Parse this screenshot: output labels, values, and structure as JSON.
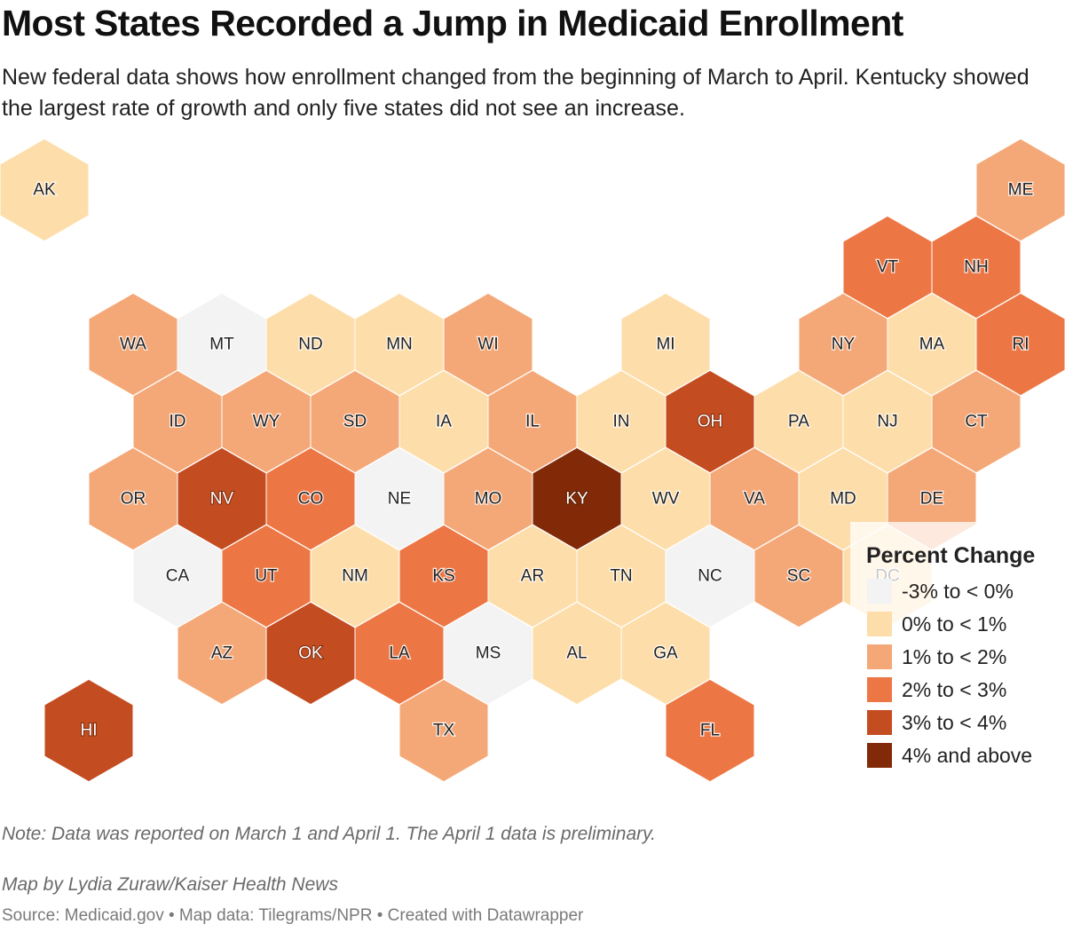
{
  "title": "Most States Recorded a Jump in Medicaid Enrollment",
  "subtitle": "New federal data shows how enrollment changed from the beginning of March to April. Kentucky showed the largest rate of growth and only five states did not see an increase.",
  "legend": {
    "title": "Percent Change",
    "bins": [
      {
        "label": "-3% to < 0%",
        "color": "#f3f3f3"
      },
      {
        "label": "0% to < 1%",
        "color": "#fddeaa"
      },
      {
        "label": "1% to < 2%",
        "color": "#f5a877"
      },
      {
        "label": "2% to < 3%",
        "color": "#ed7744"
      },
      {
        "label": "3% to < 4%",
        "color": "#c44c21"
      },
      {
        "label": "4% and above",
        "color": "#822a08"
      }
    ]
  },
  "states": [
    {
      "code": "AK",
      "bin": 1
    },
    {
      "code": "ME",
      "bin": 2
    },
    {
      "code": "VT",
      "bin": 3
    },
    {
      "code": "NH",
      "bin": 3
    },
    {
      "code": "WA",
      "bin": 2
    },
    {
      "code": "MT",
      "bin": 0
    },
    {
      "code": "ND",
      "bin": 1
    },
    {
      "code": "MN",
      "bin": 1
    },
    {
      "code": "WI",
      "bin": 2
    },
    {
      "code": "MI",
      "bin": 1
    },
    {
      "code": "NY",
      "bin": 2
    },
    {
      "code": "MA",
      "bin": 1
    },
    {
      "code": "RI",
      "bin": 3
    },
    {
      "code": "ID",
      "bin": 2
    },
    {
      "code": "WY",
      "bin": 2
    },
    {
      "code": "SD",
      "bin": 2
    },
    {
      "code": "IA",
      "bin": 1
    },
    {
      "code": "IL",
      "bin": 2
    },
    {
      "code": "IN",
      "bin": 1
    },
    {
      "code": "OH",
      "bin": 4
    },
    {
      "code": "PA",
      "bin": 1
    },
    {
      "code": "NJ",
      "bin": 1
    },
    {
      "code": "CT",
      "bin": 2
    },
    {
      "code": "OR",
      "bin": 2
    },
    {
      "code": "NV",
      "bin": 4
    },
    {
      "code": "CO",
      "bin": 3
    },
    {
      "code": "NE",
      "bin": 0
    },
    {
      "code": "MO",
      "bin": 2
    },
    {
      "code": "KY",
      "bin": 5
    },
    {
      "code": "WV",
      "bin": 1
    },
    {
      "code": "VA",
      "bin": 2
    },
    {
      "code": "MD",
      "bin": 1
    },
    {
      "code": "DE",
      "bin": 2
    },
    {
      "code": "CA",
      "bin": 0
    },
    {
      "code": "UT",
      "bin": 3
    },
    {
      "code": "NM",
      "bin": 1
    },
    {
      "code": "KS",
      "bin": 3
    },
    {
      "code": "AR",
      "bin": 1
    },
    {
      "code": "TN",
      "bin": 1
    },
    {
      "code": "NC",
      "bin": 0
    },
    {
      "code": "SC",
      "bin": 2
    },
    {
      "code": "DC",
      "bin": 1
    },
    {
      "code": "AZ",
      "bin": 2
    },
    {
      "code": "OK",
      "bin": 4
    },
    {
      "code": "LA",
      "bin": 3
    },
    {
      "code": "MS",
      "bin": 0
    },
    {
      "code": "AL",
      "bin": 1
    },
    {
      "code": "GA",
      "bin": 1
    },
    {
      "code": "HI",
      "bin": 4
    },
    {
      "code": "TX",
      "bin": 2
    },
    {
      "code": "FL",
      "bin": 3
    }
  ],
  "note": "Note: Data was reported on March 1 and April 1. The April 1 data is preliminary.",
  "byline": "Map by Lydia Zuraw/Kaiser Health News",
  "source": "Source: Medicaid.gov • Map data: Tilegrams/NPR • Created with Datawrapper"
}
